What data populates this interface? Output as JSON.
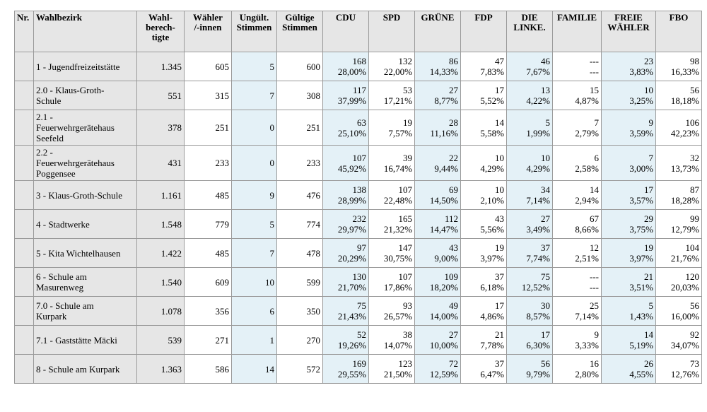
{
  "header": {
    "nr": "Nr.",
    "wahlbezirk": "Wahlbezirk",
    "wahlberechtigte": [
      "Wahl-",
      "berech-",
      "tigte"
    ],
    "waehler": [
      "Wähler",
      "/-innen"
    ],
    "ungueltig": [
      "Ungült.",
      "Stimmen"
    ],
    "gueltig": [
      "Gültige",
      "Stimmen"
    ],
    "parties": [
      [
        "CDU"
      ],
      [
        "SPD"
      ],
      [
        "GRÜNE"
      ],
      [
        "FDP"
      ],
      [
        "DIE",
        "LINKE."
      ],
      [
        "FAMILIE"
      ],
      [
        "FREIE",
        "WÄHLER"
      ],
      [
        "FBO"
      ]
    ]
  },
  "rows": [
    {
      "name": [
        "1 - Jugendfreizeitstätte"
      ],
      "berechtigte": "1.345",
      "waehler": "605",
      "ungueltig": "5",
      "gueltig": "600",
      "parties": [
        [
          "168",
          "28,00%"
        ],
        [
          "132",
          "22,00%"
        ],
        [
          "86",
          "14,33%"
        ],
        [
          "47",
          "7,83%"
        ],
        [
          "46",
          "7,67%"
        ],
        [
          "---",
          "---"
        ],
        [
          "23",
          "3,83%"
        ],
        [
          "98",
          "16,33%"
        ]
      ]
    },
    {
      "name": [
        "2.0 - Klaus-Groth-",
        "Schule"
      ],
      "berechtigte": "551",
      "waehler": "315",
      "ungueltig": "7",
      "gueltig": "308",
      "parties": [
        [
          "117",
          "37,99%"
        ],
        [
          "53",
          "17,21%"
        ],
        [
          "27",
          "8,77%"
        ],
        [
          "17",
          "5,52%"
        ],
        [
          "13",
          "4,22%"
        ],
        [
          "15",
          "4,87%"
        ],
        [
          "10",
          "3,25%"
        ],
        [
          "56",
          "18,18%"
        ]
      ]
    },
    {
      "name": [
        "2.1 -",
        "Feuerwehrgerätehaus",
        "Seefeld"
      ],
      "berechtigte": "378",
      "waehler": "251",
      "ungueltig": "0",
      "gueltig": "251",
      "parties": [
        [
          "63",
          "25,10%"
        ],
        [
          "19",
          "7,57%"
        ],
        [
          "28",
          "11,16%"
        ],
        [
          "14",
          "5,58%"
        ],
        [
          "5",
          "1,99%"
        ],
        [
          "7",
          "2,79%"
        ],
        [
          "9",
          "3,59%"
        ],
        [
          "106",
          "42,23%"
        ]
      ]
    },
    {
      "name": [
        "2.2 -",
        "Feuerwehrgerätehaus",
        "Poggensee"
      ],
      "berechtigte": "431",
      "waehler": "233",
      "ungueltig": "0",
      "gueltig": "233",
      "parties": [
        [
          "107",
          "45,92%"
        ],
        [
          "39",
          "16,74%"
        ],
        [
          "22",
          "9,44%"
        ],
        [
          "10",
          "4,29%"
        ],
        [
          "10",
          "4,29%"
        ],
        [
          "6",
          "2,58%"
        ],
        [
          "7",
          "3,00%"
        ],
        [
          "32",
          "13,73%"
        ]
      ]
    },
    {
      "name": [
        "3 - Klaus-Groth-Schule"
      ],
      "berechtigte": "1.161",
      "waehler": "485",
      "ungueltig": "9",
      "gueltig": "476",
      "parties": [
        [
          "138",
          "28,99%"
        ],
        [
          "107",
          "22,48%"
        ],
        [
          "69",
          "14,50%"
        ],
        [
          "10",
          "2,10%"
        ],
        [
          "34",
          "7,14%"
        ],
        [
          "14",
          "2,94%"
        ],
        [
          "17",
          "3,57%"
        ],
        [
          "87",
          "18,28%"
        ]
      ]
    },
    {
      "name": [
        "4 - Stadtwerke"
      ],
      "berechtigte": "1.548",
      "waehler": "779",
      "ungueltig": "5",
      "gueltig": "774",
      "parties": [
        [
          "232",
          "29,97%"
        ],
        [
          "165",
          "21,32%"
        ],
        [
          "112",
          "14,47%"
        ],
        [
          "43",
          "5,56%"
        ],
        [
          "27",
          "3,49%"
        ],
        [
          "67",
          "8,66%"
        ],
        [
          "29",
          "3,75%"
        ],
        [
          "99",
          "12,79%"
        ]
      ]
    },
    {
      "name": [
        "5 - Kita Wichtelhausen"
      ],
      "berechtigte": "1.422",
      "waehler": "485",
      "ungueltig": "7",
      "gueltig": "478",
      "parties": [
        [
          "97",
          "20,29%"
        ],
        [
          "147",
          "30,75%"
        ],
        [
          "43",
          "9,00%"
        ],
        [
          "19",
          "3,97%"
        ],
        [
          "37",
          "7,74%"
        ],
        [
          "12",
          "2,51%"
        ],
        [
          "19",
          "3,97%"
        ],
        [
          "104",
          "21,76%"
        ]
      ]
    },
    {
      "name": [
        "6 - Schule am",
        "Masurenweg"
      ],
      "berechtigte": "1.540",
      "waehler": "609",
      "ungueltig": "10",
      "gueltig": "599",
      "parties": [
        [
          "130",
          "21,70%"
        ],
        [
          "107",
          "17,86%"
        ],
        [
          "109",
          "18,20%"
        ],
        [
          "37",
          "6,18%"
        ],
        [
          "75",
          "12,52%"
        ],
        [
          "---",
          "---"
        ],
        [
          "21",
          "3,51%"
        ],
        [
          "120",
          "20,03%"
        ]
      ]
    },
    {
      "name": [
        "7.0 - Schule am",
        "Kurpark"
      ],
      "berechtigte": "1.078",
      "waehler": "356",
      "ungueltig": "6",
      "gueltig": "350",
      "parties": [
        [
          "75",
          "21,43%"
        ],
        [
          "93",
          "26,57%"
        ],
        [
          "49",
          "14,00%"
        ],
        [
          "17",
          "4,86%"
        ],
        [
          "30",
          "8,57%"
        ],
        [
          "25",
          "7,14%"
        ],
        [
          "5",
          "1,43%"
        ],
        [
          "56",
          "16,00%"
        ]
      ]
    },
    {
      "name": [
        "7.1 - Gaststätte Mäcki"
      ],
      "berechtigte": "539",
      "waehler": "271",
      "ungueltig": "1",
      "gueltig": "270",
      "parties": [
        [
          "52",
          "19,26%"
        ],
        [
          "38",
          "14,07%"
        ],
        [
          "27",
          "10,00%"
        ],
        [
          "21",
          "7,78%"
        ],
        [
          "17",
          "6,30%"
        ],
        [
          "9",
          "3,33%"
        ],
        [
          "14",
          "5,19%"
        ],
        [
          "92",
          "34,07%"
        ]
      ]
    },
    {
      "name": [
        "8 - Schule am Kurpark"
      ],
      "berechtigte": "1.363",
      "waehler": "586",
      "ungueltig": "14",
      "gueltig": "572",
      "parties": [
        [
          "169",
          "29,55%"
        ],
        [
          "123",
          "21,50%"
        ],
        [
          "72",
          "12,59%"
        ],
        [
          "37",
          "6,47%"
        ],
        [
          "56",
          "9,79%"
        ],
        [
          "16",
          "2,80%"
        ],
        [
          "26",
          "4,55%"
        ],
        [
          "73",
          "12,76%"
        ]
      ]
    }
  ]
}
